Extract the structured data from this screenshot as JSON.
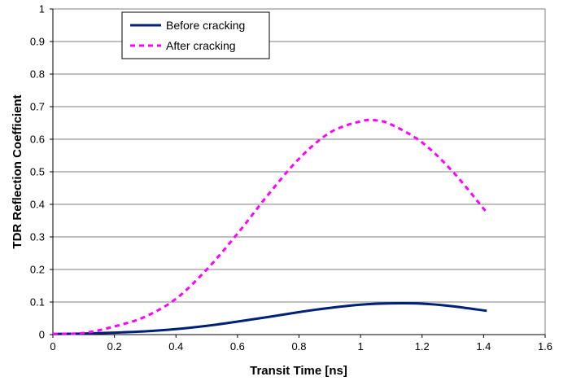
{
  "chart_data": {
    "type": "line",
    "xlabel": "Transit Time [ns]",
    "ylabel": "TDR Reflection Coefficient",
    "xlim": [
      0,
      1.6
    ],
    "ylim": [
      0,
      1
    ],
    "xticks": [
      "0",
      "0.2",
      "0.4",
      "0.6",
      "0.8",
      "1",
      "1.2",
      "1.4",
      "1.6"
    ],
    "yticks": [
      "0",
      "0.1",
      "0.2",
      "0.3",
      "0.4",
      "0.5",
      "0.6",
      "0.7",
      "0.8",
      "0.9",
      "1"
    ],
    "grid": "horizontal",
    "legend_position": "top-left",
    "series": [
      {
        "name": "Before cracking",
        "style": "solid",
        "color": "#00207A",
        "x": [
          0,
          0.1,
          0.2,
          0.3,
          0.4,
          0.5,
          0.6,
          0.7,
          0.8,
          0.9,
          1.0,
          1.1,
          1.2,
          1.3,
          1.41
        ],
        "y": [
          0.002,
          0.003,
          0.006,
          0.01,
          0.017,
          0.027,
          0.04,
          0.054,
          0.069,
          0.082,
          0.092,
          0.096,
          0.095,
          0.087,
          0.073
        ]
      },
      {
        "name": "After cracking",
        "style": "dashed",
        "color": "#FF00FF",
        "x": [
          0,
          0.1,
          0.2,
          0.3,
          0.4,
          0.5,
          0.6,
          0.7,
          0.8,
          0.9,
          1.0,
          1.05,
          1.1,
          1.2,
          1.3,
          1.41
        ],
        "y": [
          0.002,
          0.005,
          0.025,
          0.055,
          0.11,
          0.2,
          0.31,
          0.43,
          0.54,
          0.62,
          0.655,
          0.658,
          0.645,
          0.59,
          0.5,
          0.375
        ]
      }
    ]
  }
}
